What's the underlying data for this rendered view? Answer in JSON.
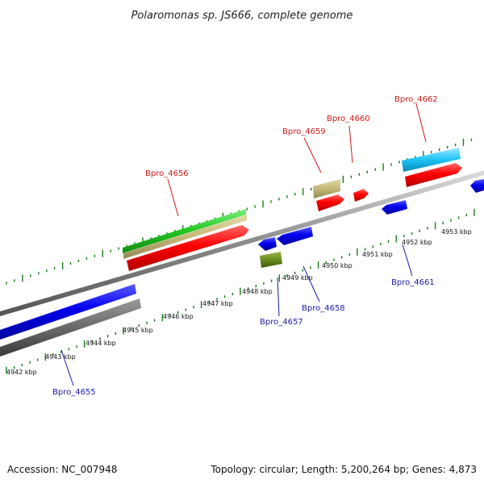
{
  "title": "Polaromonas sp. JS666, complete genome",
  "footer": {
    "accession": "Accession: NC_007948",
    "summary": "Topology: circular; Length: 5,200,264 bp; Genes: 4,873"
  },
  "scale_labels": [
    "4942 kbp",
    "4943 kbp",
    "4944 kbp",
    "4945 kbp",
    "4946 kbp",
    "4947 kbp",
    "4948 kbp",
    "4949 kbp",
    "4950 kbp",
    "4951 kbp",
    "4952 kbp",
    "4953 kbp"
  ],
  "gene_labels": {
    "bpro_4655": "Bpro_4655",
    "bpro_4656": "Bpro_4656",
    "bpro_4657": "Bpro_4657",
    "bpro_4658": "Bpro_4658",
    "bpro_4659": "Bpro_4659",
    "bpro_4660": "Bpro_4660",
    "bpro_4661": "Bpro_4661",
    "bpro_4662": "Bpro_4662"
  },
  "colors": {
    "forward_gene": "#ff0000",
    "reverse_gene": "#0000ee",
    "tick": "#1a7a1a",
    "backbone": "#8a8a8a",
    "label_forward": "#d11a1a",
    "label_reverse": "#1a1aa8"
  }
}
